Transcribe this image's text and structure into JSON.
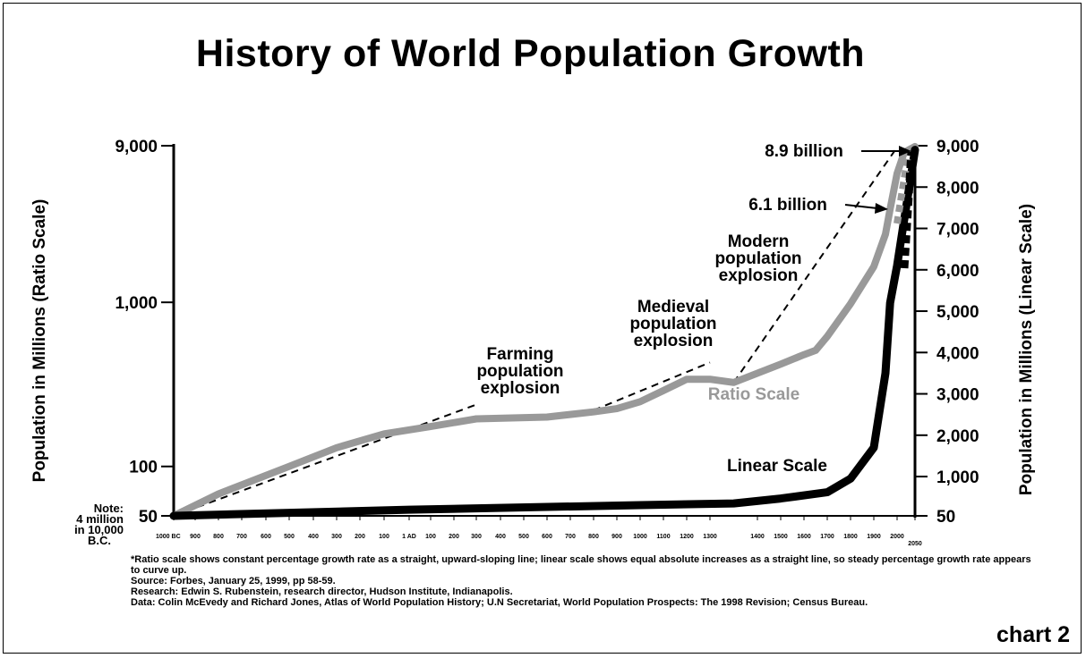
{
  "chart_data": {
    "type": "line",
    "title": "History of World Population Growth",
    "ylabel_left": "Population in Millions (Ratio Scale)",
    "ylabel_right": "Population in Millions (Linear Scale)",
    "left_ticks": [
      {
        "value": 9000,
        "label": "9,000"
      },
      {
        "value": 1000,
        "label": "1,000"
      },
      {
        "value": 100,
        "label": "100"
      },
      {
        "value": 50,
        "label": "50"
      }
    ],
    "right_ticks": [
      {
        "value": 9000,
        "label": "9,000"
      },
      {
        "value": 8000,
        "label": "8,000"
      },
      {
        "value": 7000,
        "label": "7,000"
      },
      {
        "value": 6000,
        "label": "6,000"
      },
      {
        "value": 5000,
        "label": "5,000"
      },
      {
        "value": 4000,
        "label": "4,000"
      },
      {
        "value": 3000,
        "label": "3,000"
      },
      {
        "value": 2000,
        "label": "2,000"
      },
      {
        "value": 1000,
        "label": "1,000"
      },
      {
        "value": 50,
        "label": "50"
      }
    ],
    "x_tick_labels": [
      "1000 BC",
      "900",
      "800",
      "700",
      "600",
      "500",
      "400",
      "300",
      "200",
      "100",
      "1 AD",
      "100",
      "200",
      "300",
      "400",
      "500",
      "600",
      "700",
      "800",
      "900",
      "1000",
      "1100",
      "1200",
      "1300",
      "1400",
      "1500",
      "1600",
      "1700",
      "1800",
      "1900",
      "2000",
      "2050"
    ],
    "series": [
      {
        "name": "Ratio Scale",
        "color": "#999999",
        "points": [
          [
            -1000,
            50
          ],
          [
            -800,
            68
          ],
          [
            -500,
            100
          ],
          [
            -300,
            130
          ],
          [
            -100,
            158
          ],
          [
            100,
            175
          ],
          [
            300,
            195
          ],
          [
            600,
            200
          ],
          [
            800,
            215
          ],
          [
            900,
            225
          ],
          [
            1000,
            248
          ],
          [
            1100,
            290
          ],
          [
            1200,
            340
          ],
          [
            1300,
            340
          ],
          [
            1350,
            325
          ],
          [
            1500,
            420
          ],
          [
            1600,
            480
          ],
          [
            1650,
            510
          ],
          [
            1700,
            620
          ],
          [
            1800,
            980
          ],
          [
            1900,
            1650
          ],
          [
            1950,
            2600
          ],
          [
            1970,
            3700
          ],
          [
            2000,
            6100
          ],
          [
            2020,
            8200
          ],
          [
            2050,
            8900
          ]
        ]
      },
      {
        "name": "Linear Scale",
        "color": "#000000",
        "points": [
          [
            -1000,
            50
          ],
          [
            1,
            200
          ],
          [
            1000,
            310
          ],
          [
            1350,
            350
          ],
          [
            1500,
            470
          ],
          [
            1700,
            620
          ],
          [
            1800,
            950
          ],
          [
            1900,
            1700
          ],
          [
            1950,
            3500
          ],
          [
            1970,
            5200
          ],
          [
            2000,
            6100
          ],
          [
            2050,
            8900
          ]
        ]
      }
    ],
    "trend_lines": [
      {
        "label": "Farming population explosion",
        "points": [
          [
            -1000,
            50
          ],
          [
            300,
            238
          ]
        ]
      },
      {
        "label": "Medieval population explosion",
        "points": [
          [
            800,
            220
          ],
          [
            1300,
            430
          ]
        ]
      },
      {
        "label": "Modern population explosion",
        "points": [
          [
            1350,
            325
          ],
          [
            2000,
            8800
          ]
        ]
      }
    ],
    "annotations": [
      {
        "text": "8.9 billion",
        "x": 2050,
        "y": 8900
      },
      {
        "text": "6.1 billion",
        "x": 2000,
        "y": 6100
      },
      {
        "text": "Modern population explosion"
      },
      {
        "text": "Medieval population explosion"
      },
      {
        "text": "Farming population explosion"
      },
      {
        "text": "Ratio Scale"
      },
      {
        "text": "Linear Scale"
      }
    ]
  },
  "labels": {
    "note_line1": "Note:",
    "note_line2": "4 million",
    "note_line3": "in 10,000",
    "note_line4": "B.C.",
    "farming": [
      "Farming",
      "population",
      "explosion"
    ],
    "medieval": [
      "Medieval",
      "population",
      "explosion"
    ],
    "modern": [
      "Modern",
      "population",
      "explosion"
    ],
    "ratio_scale": "Ratio Scale",
    "linear_scale": "Linear Scale",
    "billion_89": "8.9 billion",
    "billion_61": "6.1 billion"
  },
  "footnotes": {
    "line1": "*Ratio scale shows constant percentage growth rate as a straight, upward-sloping line; linear scale shows equal absolute increases as a straight line, so steady percentage growth rate appears",
    "line2": "to curve up.",
    "line3": "Source: Forbes, January 25, 1999, pp 58-59.",
    "line4": "Research: Edwin S. Rubenstein, research director, Hudson Institute, Indianapolis.",
    "line5": "Data: Colin McEvedy and Richard Jones, Atlas of World Population History; U.N Secretariat, World Population Prospects: The 1998 Revision; Census Bureau."
  },
  "chart_label": "chart 2"
}
